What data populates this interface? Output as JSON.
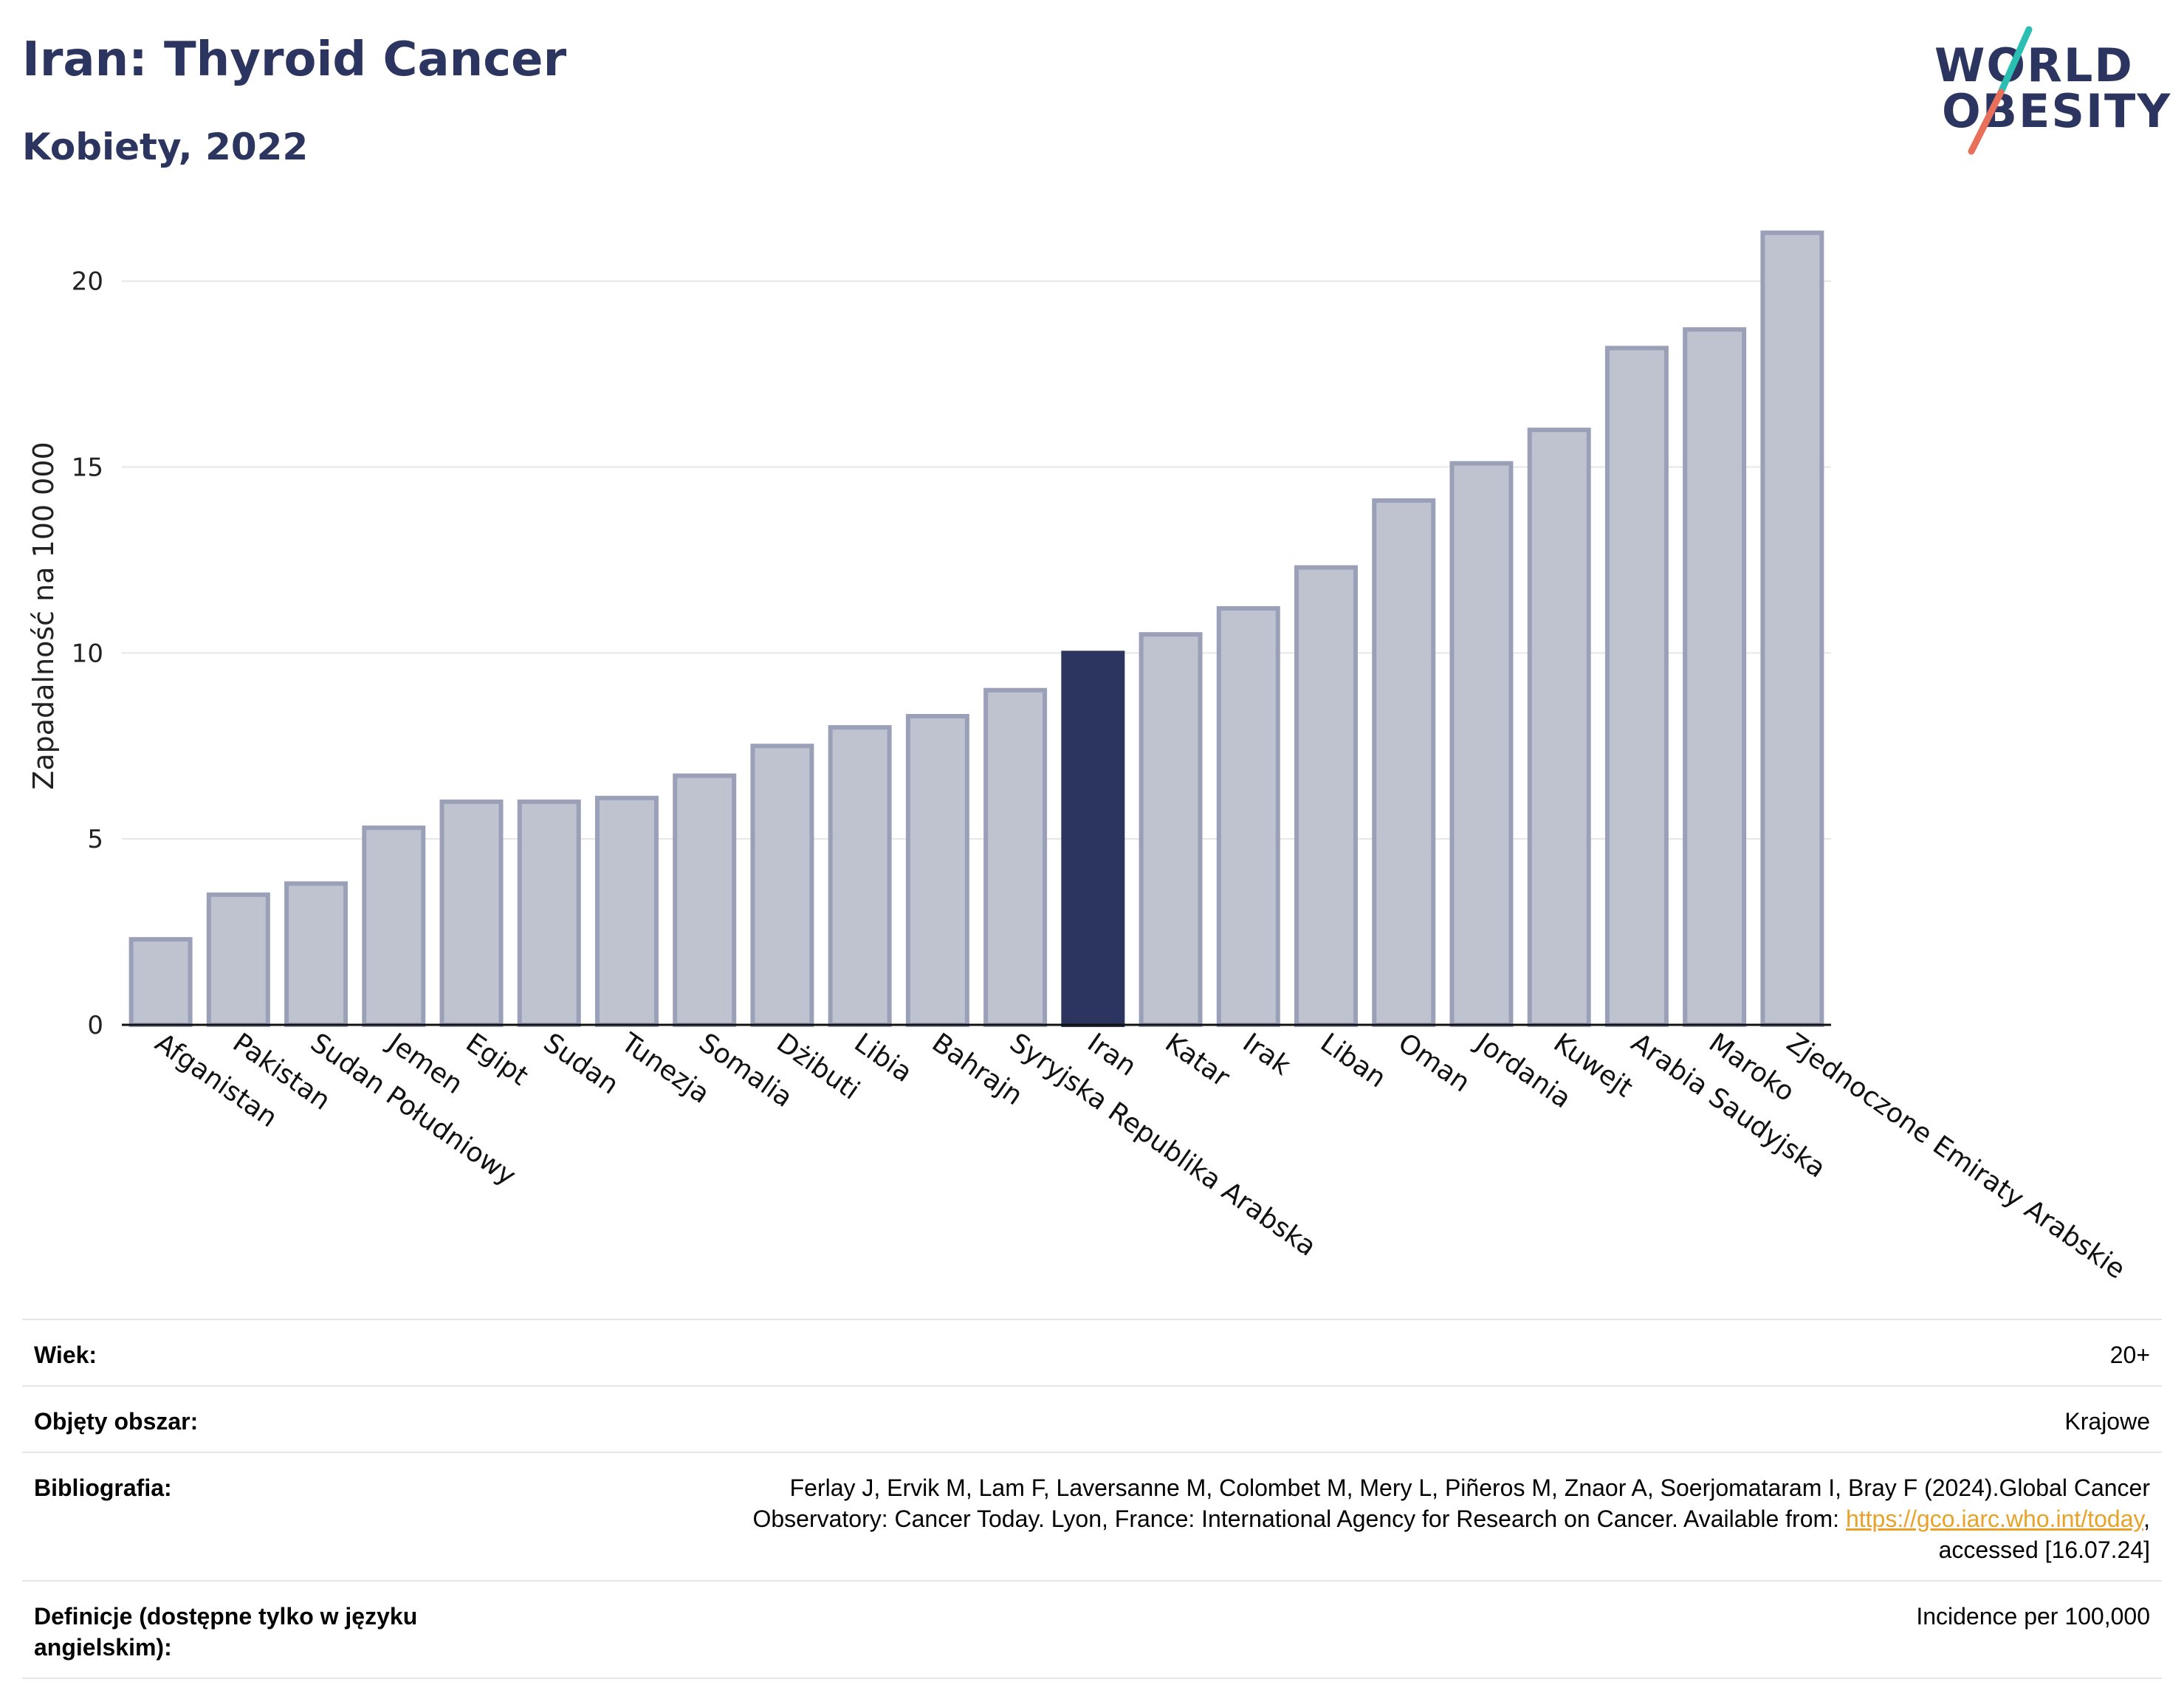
{
  "header": {
    "title": "Iran: Thyroid Cancer",
    "subtitle": "Kobiety, 2022"
  },
  "logo": {
    "line1": "WORLD",
    "line2": "OBESITY",
    "colors": {
      "text": "#2b3560",
      "slash_top": "#2bbfb3",
      "slash_bottom": "#e8705a"
    }
  },
  "chart_data": {
    "type": "bar",
    "ylabel": "Zapadalność na 100 000",
    "ylim": [
      0,
      22
    ],
    "yticks": [
      0,
      5,
      10,
      15,
      20
    ],
    "grid": true,
    "highlight": "Iran",
    "colors": {
      "bar": "#bfc2cf",
      "bar_edge": "#9aa0b8",
      "highlight": "#2b3560",
      "grid": "#e6e6ea"
    },
    "categories": [
      "Afganistan",
      "Pakistan",
      "Sudan Południowy",
      "Jemen",
      "Egipt",
      "Sudan",
      "Tunezja",
      "Somalia",
      "Dżibuti",
      "Libia",
      "Bahrajn",
      "Syryjska Republika Arabska",
      "Iran",
      "Katar",
      "Irak",
      "Liban",
      "Oman",
      "Jordania",
      "Kuwejt",
      "Arabia Saudyjska",
      "Maroko",
      "Zjednoczone Emiraty Arabskie"
    ],
    "values": [
      2.3,
      3.5,
      3.8,
      5.3,
      6.0,
      6.0,
      6.1,
      6.7,
      7.5,
      8.0,
      8.3,
      9.0,
      10.0,
      10.5,
      11.2,
      12.3,
      14.1,
      15.1,
      16.0,
      18.2,
      18.7,
      21.3
    ]
  },
  "meta": {
    "rows": [
      {
        "label": "Wiek:",
        "value": "20+"
      },
      {
        "label": "Objęty obszar:",
        "value": "Krajowe"
      },
      {
        "label": "Bibliografia:",
        "value_line1": "Ferlay J, Ervik M, Lam F, Laversanne M, Colombet M, Mery L, Piñeros M, Znaor A, Soerjomataram I, Bray F (2024).Global Cancer",
        "value_line2_pre": "Observatory: Cancer Today. Lyon, France: International Agency for Research on Cancer. Available from: ",
        "value_link": "https://gco.iarc.who.int/today",
        "value_line2_post": ",",
        "value_line3": "accessed [16.07.24]"
      },
      {
        "label": "Definicje (dostępne tylko w języku angielskim):",
        "value": "Incidence per 100,000"
      }
    ]
  }
}
